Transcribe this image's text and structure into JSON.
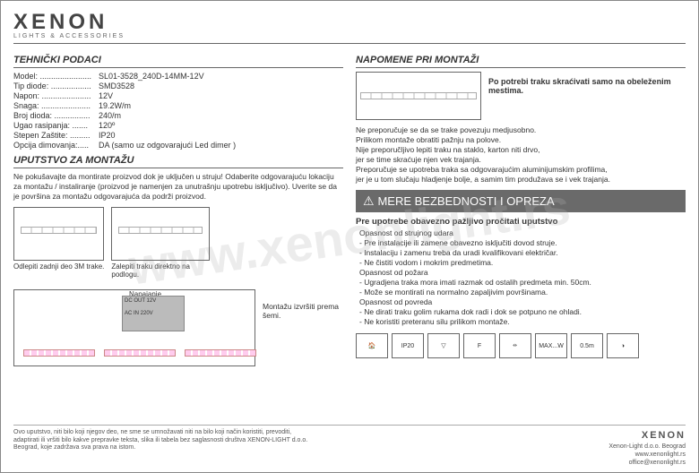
{
  "brand": {
    "name": "XENON",
    "sub": "LIGHTS & ACCESSORIES"
  },
  "tech": {
    "title": "TEHNIČKI PODACI",
    "rows": [
      {
        "l": "Model: .......................",
        "r": "SL01-3528_240D-14MM-12V"
      },
      {
        "l": "Tip diode: ..................",
        "r": "SMD3528"
      },
      {
        "l": "Napon: ......................",
        "r": "12V"
      },
      {
        "l": "Snaga: ......................",
        "r": "19.2W/m"
      },
      {
        "l": "Broj dioda: ................",
        "r": "240/m"
      },
      {
        "l": "Ugao rasipanja: .......",
        "r": "120º"
      },
      {
        "l": "Stepen Zaštite: .........",
        "r": "IP20"
      },
      {
        "l": "Opcija dimovanja:.....",
        "r": "DA (samo uz odgovarajući Led dimer )"
      }
    ]
  },
  "mount": {
    "title": "UPUTSTVO ZA MONTAŽU",
    "intro": "Ne pokušavajte da montirate proizvod dok je uključen u struju! Odaberite odgovarajuću lokaciju za montažu / instaliranje (proizvod je namenjen za unutrašnju upotrebu isključivo). Uverite se da je površina za montažu odgovarajuća da podrži proizvod.",
    "cap1": "Odlepiti zadnji deo 3M trake.",
    "cap2": "Zalepiti traku direktno na podlogu.",
    "schem_label": "Napajanje",
    "schem_note": "Montažu izvršiti prema šemi.",
    "psu1": "DC OUT 12V",
    "psu2": "AC IN 220V"
  },
  "notes": {
    "title": "NAPOMENE PRI MONTAŽI",
    "top": "Po potrebi traku skraćivati samo na obeleženim mestima.",
    "body": "Ne preporučuje se da se trake povezuju medjusobno.\nPrilikom montaže obratiti pažnju na polove.\nNije preporučljivo lepiti traku na staklo, karton niti drvo,\njer se time skraćuje njen vek trajanja.\nPreporučuje se upotreba traka sa odgovarajućim aluminijumskim profilima,\njer je u tom slučaju hladjenje bolje, a samim tim produžava se i vek trajanja."
  },
  "safety": {
    "bar": "MERE BEZBEDNOSTI I OPREZA",
    "lead": "Pre upotrebe obavezno pažljivo pročitati uputstvo",
    "g": [
      {
        "h": "Opasnost od strujnog udara",
        "i": [
          "- Pre instalacije ili zamene obavezno isključiti dovod struje.",
          "- Instalaciju i zamenu treba da uradi kvalifikovani električar.",
          "- Ne čistiti vodom i mokrim predmetima."
        ]
      },
      {
        "h": "Opasnost od požara",
        "i": [
          "- Ugradjena traka mora imati razmak od ostalih predmeta min. 50cm.",
          "- Može se montirati na normalno zapaljivim površinama."
        ]
      },
      {
        "h": "Opasnost od povreda",
        "i": [
          "- Ne dirati traku golim rukama dok radi i dok se potpuno ne ohladi.",
          "- Ne koristiti preteranu silu prilikom montaže."
        ]
      }
    ]
  },
  "icons": [
    "🏠",
    "IP20",
    "▽",
    "F",
    "⦵",
    "MAX...W",
    "0.5m",
    "◑"
  ],
  "footer": {
    "l": "Ovo uputstvo, niti bilo koji njegov deo, ne sme se umnožavati niti na bilo koji način koristiti, prevoditi, adaptirati ili vršiti bilo kakve prepravke teksta, slika ili tabela bez saglasnosti društva XENON-LIGHT d.o.o. Beograd, koje zadržava sva prava na istom.",
    "brand": "XENON",
    "c": "Xenon-Light d.o.o. Beograd",
    "w": "www.xenonlight.rs",
    "e": "office@xenonlight.rs"
  },
  "watermark": "www.xenonlight.rs"
}
